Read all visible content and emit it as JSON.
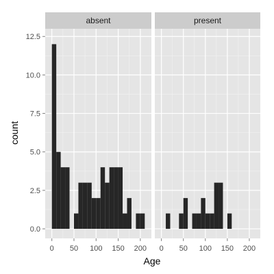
{
  "chart_data": {
    "type": "bar",
    "subtype": "faceted-histogram",
    "xlabel": "Age",
    "ylabel": "count",
    "xlim": [
      -15,
      225
    ],
    "ylim": [
      -0.62,
      13.0
    ],
    "x_ticks": [
      0,
      50,
      100,
      150,
      200
    ],
    "y_ticks": [
      0.0,
      2.5,
      5.0,
      7.5,
      10.0,
      12.5
    ],
    "y_tick_labels": [
      "0.0",
      "2.5",
      "5.0",
      "7.5",
      "10.0",
      "12.5"
    ],
    "bin_width": 10,
    "grid": true,
    "colors": {
      "panel_background": "#e5e5e5",
      "strip_background": "#cccccc",
      "grid_major": "#ffffff",
      "grid_minor": "#f2f2f2",
      "bar_fill": "#262626"
    },
    "facets": [
      {
        "label": "absent",
        "bin_starts": [
          0,
          10,
          20,
          30,
          50,
          60,
          70,
          80,
          90,
          100,
          110,
          120,
          130,
          140,
          150,
          160,
          170,
          190,
          200
        ],
        "counts": [
          12,
          5,
          4,
          4,
          1,
          3,
          3,
          3,
          2,
          2,
          4,
          3,
          4,
          4,
          4,
          1,
          2,
          1,
          1
        ]
      },
      {
        "label": "present",
        "bin_starts": [
          10,
          40,
          50,
          70,
          80,
          90,
          100,
          110,
          120,
          130,
          150
        ],
        "counts": [
          1,
          1,
          2,
          1,
          1,
          2,
          1,
          1,
          3,
          3,
          1
        ]
      }
    ]
  }
}
